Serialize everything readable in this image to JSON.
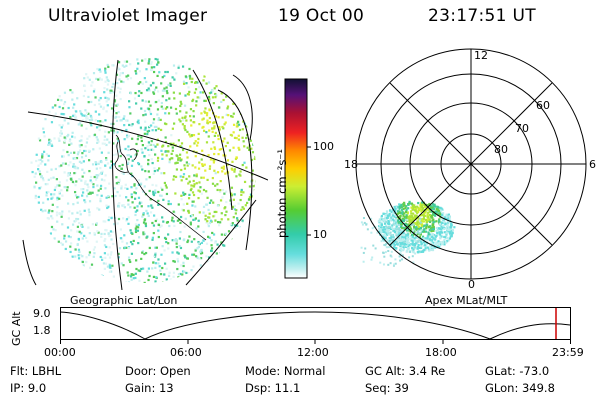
{
  "header": {
    "instrument": "Ultraviolet Imager",
    "date": "19 Oct 00",
    "time": "23:17:51 UT"
  },
  "left_panel": {
    "caption": "Geographic Lat/Lon"
  },
  "right_panel": {
    "caption": "Apex MLat/MLT",
    "mlt_labels": [
      "12",
      "18",
      "6",
      "0"
    ],
    "mlat_labels": [
      "60",
      "70",
      "80"
    ]
  },
  "colorbar": {
    "label": "photon cm⁻²s⁻¹",
    "ticks": [
      "100",
      "10"
    ],
    "scale": "log",
    "colors": [
      "#111133",
      "#551177",
      "#aa1133",
      "#ee2222",
      "#ff8800",
      "#ffcc00",
      "#ccee33",
      "#55cc33",
      "#33ccaa",
      "#66dddd",
      "#bbeeee",
      "#ffffff"
    ]
  },
  "altitude_plot": {
    "ylabel": "GC Alt",
    "y_ticks": [
      "9.0",
      "1.8"
    ],
    "x_ticks": [
      "00:00",
      "06:00",
      "12:00",
      "18:00",
      "23:59"
    ],
    "marker_color": "#cc0000"
  },
  "status": {
    "flt": "Flt: LBHL",
    "door": "Door: Open",
    "mode": "Mode: Normal",
    "gc_alt": "GC Alt: 3.4 Re",
    "glat": "GLat: -73.0",
    "ip": "IP:  9.0",
    "gain": "Gain: 13",
    "dsp": "Dsp:   11.1",
    "seq": "Seq: 39",
    "glon": "GLon: 349.8"
  }
}
